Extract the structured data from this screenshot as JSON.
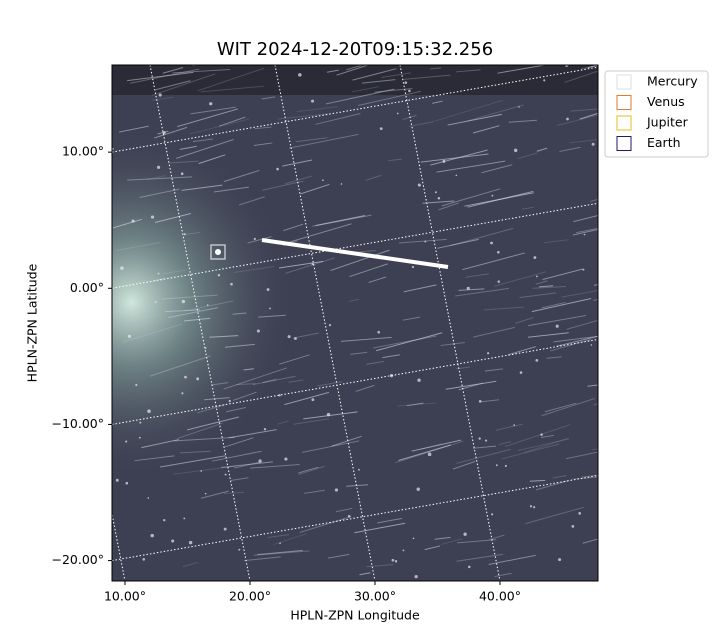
{
  "chart_data": {
    "type": "image",
    "title": "WIT 2024-12-20T09:15:32.256",
    "x_label": "HPLN-ZPN Longitude",
    "y_label": "HPLN-ZPN Latitude",
    "xlim": [
      8.96,
      47.84
    ],
    "ylim": [
      -21.5,
      16.4
    ],
    "xticks": [
      {
        "value": 10,
        "label": "10.00°"
      },
      {
        "value": 20,
        "label": "20.00°"
      },
      {
        "value": 30,
        "label": "30.00°"
      },
      {
        "value": 40,
        "label": "40.00°"
      }
    ],
    "yticks": [
      {
        "value": -20,
        "label": "−20.00°"
      },
      {
        "value": -10,
        "label": "−10.00°"
      },
      {
        "value": 0,
        "label": "0.00°"
      },
      {
        "value": 10,
        "label": "10.00°"
      }
    ],
    "grid": true,
    "legend_position": "upper right",
    "series": [
      {
        "name": "Mercury",
        "color": "#dddddd"
      },
      {
        "name": "Venus",
        "color": "#e07a30"
      },
      {
        "name": "Jupiter",
        "color": "#e8b820"
      },
      {
        "name": "Earth",
        "color": "#1a1a6e"
      }
    ]
  }
}
